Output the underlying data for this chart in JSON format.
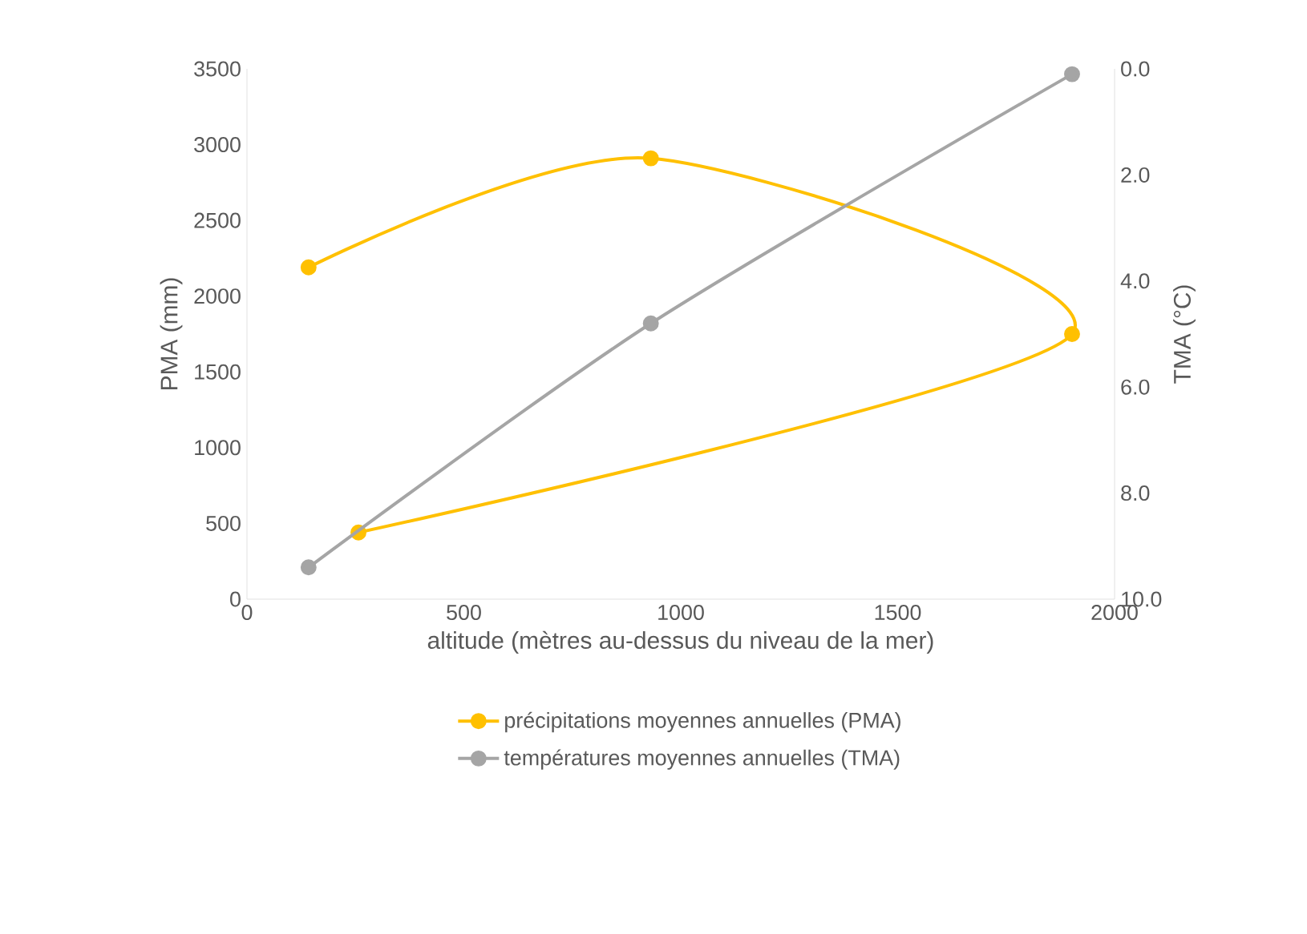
{
  "chart_data": {
    "type": "line",
    "xlabel": "altitude (mètres au-dessus du niveau de la mer)",
    "ylabel": "PMA (mm)",
    "y2label": "TMA (°C)",
    "xlim": [
      0,
      2000
    ],
    "xticks": [
      0,
      500,
      1000,
      1500,
      2000
    ],
    "ylim": [
      0,
      3500
    ],
    "yticks": [
      0,
      500,
      1000,
      1500,
      2000,
      2500,
      3000,
      3500
    ],
    "y2lim": [
      10,
      0
    ],
    "y2ticks": [
      {
        "value": 0,
        "label": "0.0"
      },
      {
        "value": 2,
        "label": "2.0"
      },
      {
        "value": 4,
        "label": "4.0"
      },
      {
        "value": 6,
        "label": "6.0"
      },
      {
        "value": 8,
        "label": "8.0"
      },
      {
        "value": 10,
        "label": "10.0"
      }
    ],
    "grid": false,
    "legend": "bottom",
    "marker": "circle",
    "line_style": "solid",
    "series": [
      {
        "name": "précipitations moyennes annuelles (PMA)",
        "color": "#ffc000",
        "x": [
          142,
          931,
          1902,
          257
        ],
        "values": [
          2190,
          2910,
          1750,
          440
        ]
      },
      {
        "name": "températures moyennes annuelles (TMA)",
        "color": "#a5a5a5",
        "axis": "y2",
        "x": [
          142,
          931,
          1902
        ],
        "values": [
          9.4,
          4.8,
          0.1
        ]
      }
    ]
  }
}
